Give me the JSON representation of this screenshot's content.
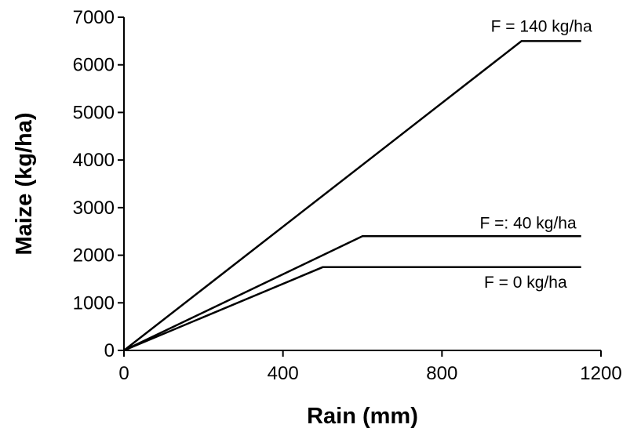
{
  "chart_data": {
    "type": "line",
    "title": "",
    "xlabel": "Rain (mm)",
    "ylabel": "Maize (kg/ha)",
    "xlim": [
      0,
      1200
    ],
    "ylim": [
      0,
      7000
    ],
    "x_ticks": [
      0,
      400,
      800,
      1200
    ],
    "y_ticks": [
      0,
      1000,
      2000,
      3000,
      4000,
      5000,
      6000,
      7000
    ],
    "grid": false,
    "legend": "none",
    "series": [
      {
        "name": "F = 140 kg/ha",
        "x": [
          0,
          1000,
          1150
        ],
        "y": [
          0,
          6500,
          6500
        ]
      },
      {
        "name": "F =: 40 kg/ha",
        "x": [
          0,
          600,
          1150
        ],
        "y": [
          0,
          2400,
          2400
        ]
      },
      {
        "name": "F = 0 kg/ha",
        "x": [
          0,
          500,
          1150
        ],
        "y": [
          0,
          1750,
          1750
        ]
      }
    ]
  }
}
